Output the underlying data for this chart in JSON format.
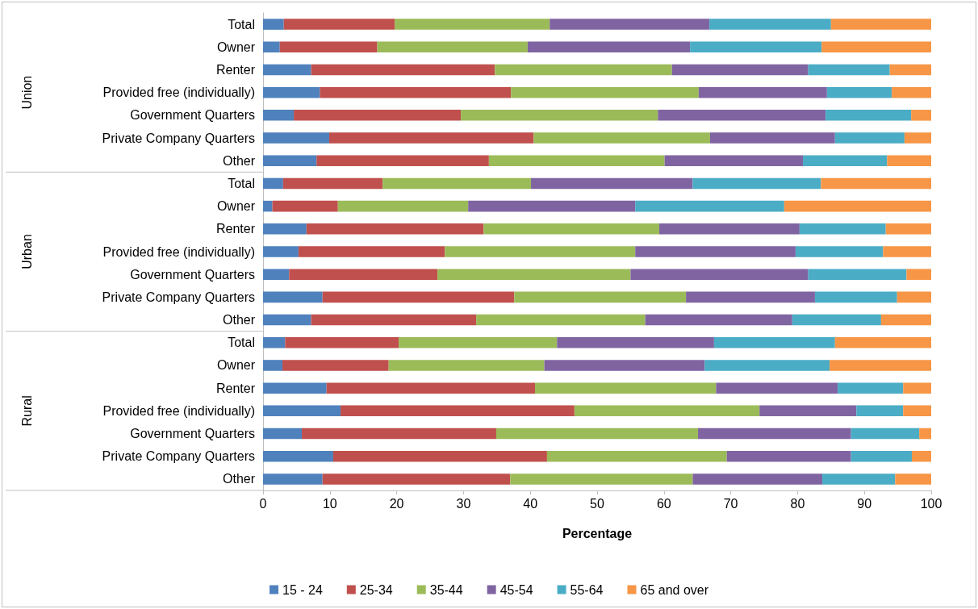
{
  "chart_data": {
    "type": "bar",
    "orientation": "horizontal",
    "stacked": true,
    "xlabel": "Percentage",
    "annotations": [
      "Union",
      "Urban",
      "Rural"
    ],
    "categories": [
      "Total",
      "Owner",
      "Renter",
      "Provided free (individually)",
      "Government Quarters",
      "Private Company Quarters",
      "Other",
      "Total",
      "Owner",
      "Renter",
      "Provided free (individually)",
      "Government Quarters",
      "Private Company Quarters",
      "Other",
      "Total",
      "Owner",
      "Renter",
      "Provided free (individually)",
      "Government Quarters",
      "Private Company Quarters",
      "Other"
    ],
    "series": [
      {
        "name": "15 - 24",
        "color": "#4f81bd",
        "values": [
          3.1,
          2.5,
          7.2,
          8.5,
          4.6,
          9.9,
          8.0,
          3.0,
          1.4,
          6.5,
          5.3,
          3.9,
          8.9,
          7.2,
          3.3,
          2.9,
          9.5,
          11.6,
          5.8,
          10.5,
          8.9
        ]
      },
      {
        "name": "25-34",
        "color": "#c0504d",
        "values": [
          16.6,
          14.6,
          27.5,
          28.6,
          25.0,
          30.6,
          25.8,
          14.9,
          9.8,
          26.5,
          21.9,
          22.2,
          28.7,
          24.7,
          17.0,
          15.9,
          31.2,
          35.0,
          29.1,
          32.0,
          28.1
        ]
      },
      {
        "name": "35-44",
        "color": "#9bbb59",
        "values": [
          23.2,
          22.5,
          26.5,
          28.1,
          29.5,
          26.4,
          26.3,
          22.2,
          19.5,
          26.3,
          28.5,
          28.9,
          25.7,
          25.3,
          23.7,
          23.3,
          27.1,
          27.7,
          30.2,
          26.9,
          27.3
        ]
      },
      {
        "name": "45-54",
        "color": "#8064a2",
        "values": [
          23.9,
          24.3,
          20.4,
          19.2,
          25.1,
          18.7,
          20.7,
          24.2,
          25.0,
          21.0,
          24.0,
          26.6,
          19.3,
          22.0,
          23.5,
          24.0,
          18.2,
          14.5,
          22.9,
          18.6,
          19.4
        ]
      },
      {
        "name": "55-64",
        "color": "#4bacc6",
        "values": [
          18.2,
          19.7,
          12.2,
          9.7,
          12.8,
          10.4,
          12.6,
          19.2,
          22.3,
          12.9,
          13.1,
          14.7,
          12.3,
          13.3,
          18.1,
          18.7,
          9.8,
          7.0,
          10.2,
          9.1,
          10.9
        ]
      },
      {
        "name": "65 and over",
        "color": "#f79646",
        "values": [
          15.0,
          16.4,
          6.2,
          5.9,
          3.0,
          4.0,
          6.6,
          16.5,
          22.0,
          6.8,
          7.2,
          3.7,
          5.1,
          7.5,
          14.4,
          15.2,
          4.2,
          4.2,
          1.8,
          2.9,
          5.4
        ]
      }
    ],
    "xlim": [
      0,
      100
    ],
    "xticks": [
      0,
      10,
      20,
      30,
      40,
      50,
      60,
      70,
      80,
      90,
      100
    ],
    "grid": false,
    "legend": "bottom"
  }
}
